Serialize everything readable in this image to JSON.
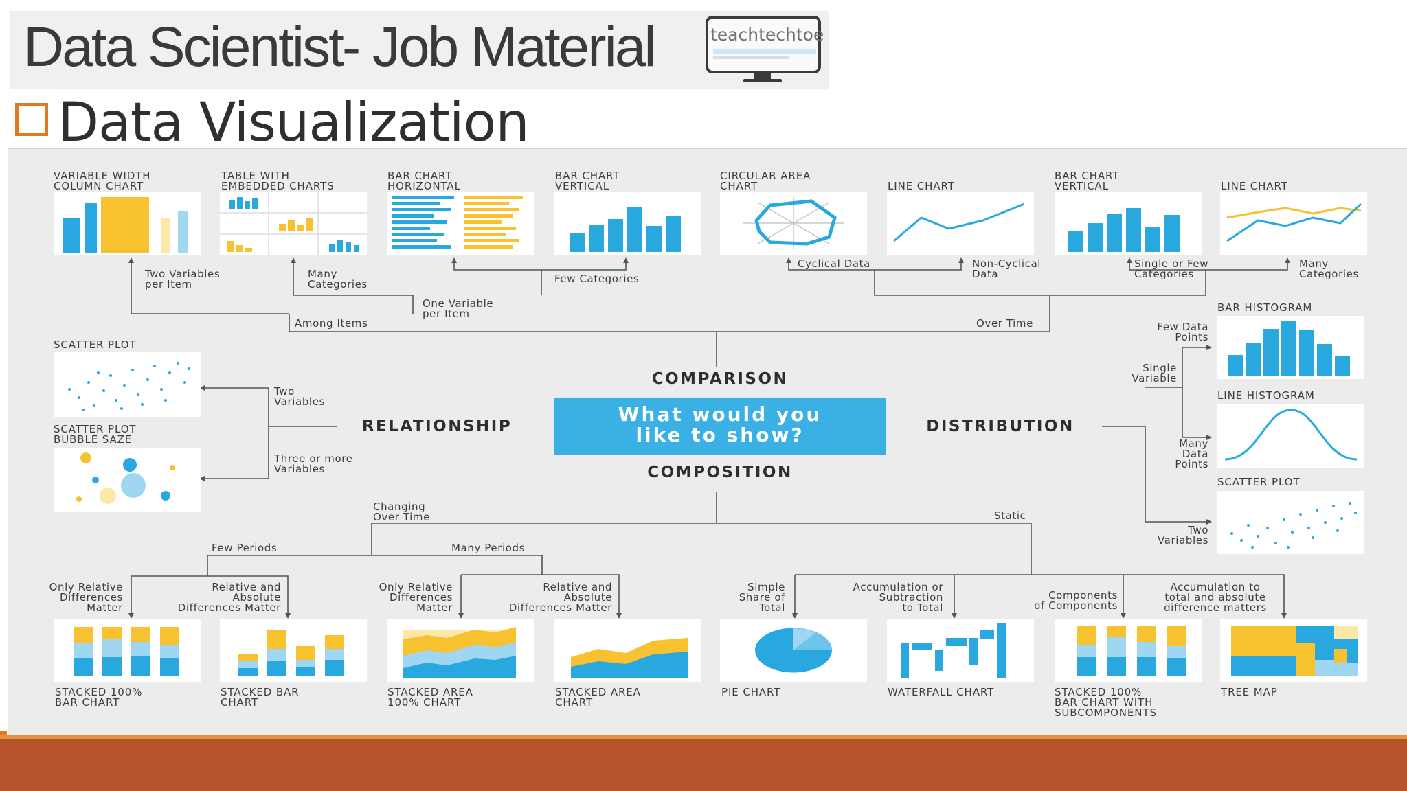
{
  "header": {
    "title": "Data Scientist- Job Material",
    "logo_text": "teachtechtoe",
    "subtitle": "Data Visualization"
  },
  "colors": {
    "accent_orange": "#e07a1f",
    "footer_brown": "#b5542a",
    "chart_blue": "#29a8e0",
    "chart_yellow": "#f7c12f",
    "chart_light_blue": "#9fd6f2",
    "chart_light_yellow": "#fde8a7",
    "center_box": "#3bb0e4"
  },
  "diagram": {
    "center_question": [
      "What would you",
      "like to show?"
    ],
    "categories": {
      "comparison": "COMPARISON",
      "relationship": "RELATIONSHIP",
      "distribution": "DISTRIBUTION",
      "composition": "COMPOSITION"
    },
    "comparison_charts": [
      [
        "VARIABLE WIDTH",
        "COLUMN CHART"
      ],
      [
        "TABLE WITH",
        "EMBEDDED CHARTS"
      ],
      [
        "BAR CHART",
        "HORIZONTAL"
      ],
      [
        "BAR CHART",
        "VERTICAL"
      ],
      [
        "CIRCULAR AREA",
        "CHART"
      ],
      [
        "LINE CHART"
      ],
      [
        "BAR CHART",
        "VERTICAL"
      ],
      [
        "LINE CHART"
      ]
    ],
    "comparison_labels": {
      "two_vars": [
        "Two Variables",
        "per Item"
      ],
      "many_cat": [
        "Many",
        "Categories"
      ],
      "few_cat": "Few Categories",
      "one_var": [
        "One Variable",
        "per Item"
      ],
      "among_items": "Among Items",
      "cyclical": "Cyclical Data",
      "non_cyclical": [
        "Non-Cyclical",
        "Data"
      ],
      "single_few": [
        "Single or Few",
        "Categories"
      ],
      "many_cat_time": [
        "Many",
        "Categories"
      ],
      "over_time": "Over Time"
    },
    "relationship_charts": {
      "scatter": "SCATTER PLOT",
      "bubble": [
        "SCATTER PLOT",
        "BUBBLE SAZE"
      ],
      "two_vars": [
        "Two",
        "Variables"
      ],
      "three_vars": [
        "Three or more",
        "Variables"
      ]
    },
    "distribution_charts": {
      "bar_hist": "BAR HISTOGRAM",
      "line_hist": "LINE HISTOGRAM",
      "scatter": "SCATTER PLOT",
      "few_points": [
        "Few Data",
        "Points"
      ],
      "single_var": [
        "Single",
        "Variable"
      ],
      "many_points": [
        "Many",
        "Data",
        "Points"
      ],
      "two_vars": [
        "Two",
        "Variables"
      ]
    },
    "composition_labels": {
      "changing": [
        "Changing",
        "Over Time"
      ],
      "static": "Static",
      "few_periods": "Few Periods",
      "many_periods": "Many Periods",
      "only_rel_1": [
        "Only Relative",
        "Differences",
        "Matter"
      ],
      "rel_abs_1": [
        "Relative and",
        "Absolute",
        "Differences Matter"
      ],
      "only_rel_2": [
        "Only Relative",
        "Differences",
        "Matter"
      ],
      "rel_abs_2": [
        "Relative and",
        "Absolute",
        "Differences Matter"
      ],
      "simple_share": [
        "Simple",
        "Share of",
        "Total"
      ],
      "accum": [
        "Accumulation or",
        "Subtraction",
        "to Total"
      ],
      "components": [
        "Components",
        "of Components"
      ],
      "accum_total": [
        "Accumulation to",
        "total and absolute",
        "difference matters"
      ]
    },
    "composition_charts": [
      [
        "STACKED 100%",
        "BAR CHART"
      ],
      [
        "STACKED BAR",
        "CHART"
      ],
      [
        "STACKED AREA",
        "100% CHART"
      ],
      [
        "STACKED AREA",
        "CHART"
      ],
      [
        "PIE CHART"
      ],
      [
        "WATERFALL CHART"
      ],
      [
        "STACKED 100%",
        "BAR CHART WITH",
        "SUBCOMPONENTS"
      ],
      [
        "TREE MAP"
      ]
    ]
  }
}
